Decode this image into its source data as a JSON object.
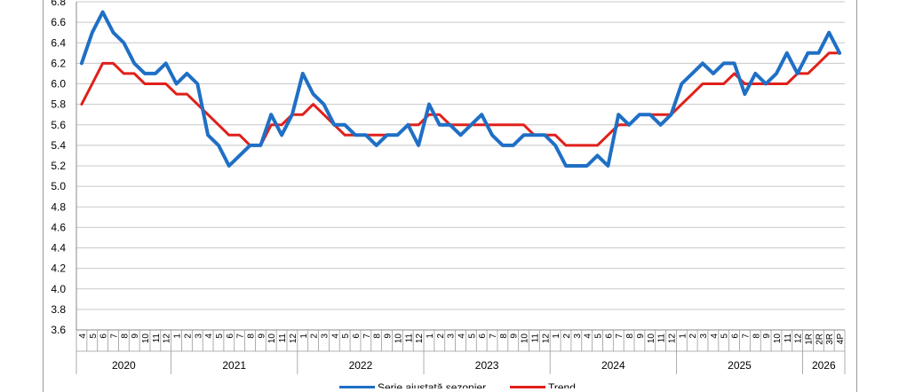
{
  "chart_data": {
    "type": "line",
    "ylim": [
      3.6,
      6.8
    ],
    "y_ticks": [
      "3.6",
      "3.8",
      "4.0",
      "4.2",
      "4.4",
      "4.6",
      "4.8",
      "5.0",
      "5.2",
      "5.4",
      "5.6",
      "5.8",
      "6.0",
      "6.2",
      "6.4",
      "6.6",
      "6.8"
    ],
    "grid": true,
    "legend": "bottom",
    "month_labels": [
      "4",
      "5",
      "6",
      "7",
      "8",
      "9",
      "10",
      "11",
      "12",
      "1",
      "2",
      "3",
      "4",
      "5",
      "6",
      "7",
      "8",
      "9",
      "10",
      "11",
      "12",
      "1",
      "2",
      "3",
      "4",
      "5",
      "6",
      "7",
      "8",
      "9",
      "10",
      "11",
      "12",
      "1",
      "2",
      "3",
      "4",
      "5",
      "6",
      "7",
      "8",
      "9",
      "10",
      "11",
      "12",
      "1",
      "2",
      "3",
      "4",
      "5",
      "6",
      "7",
      "8",
      "9",
      "10",
      "11",
      "12",
      "1",
      "2",
      "3",
      "4",
      "5",
      "6",
      "7",
      "8",
      "9",
      "10",
      "11",
      "12",
      "1R",
      "2R",
      "3R",
      "4P"
    ],
    "year_groups": [
      {
        "label": "2020",
        "count": 9
      },
      {
        "label": "2021",
        "count": 12
      },
      {
        "label": "2022",
        "count": 12
      },
      {
        "label": "2023",
        "count": 12
      },
      {
        "label": "2024",
        "count": 12
      },
      {
        "label": "2025",
        "count": 12
      },
      {
        "label": "2026",
        "count": 4
      }
    ],
    "series": [
      {
        "name": "Serie ajustată sezonier",
        "color": "#1f6fc5",
        "values": [
          6.2,
          6.5,
          6.7,
          6.5,
          6.4,
          6.2,
          6.1,
          6.1,
          6.2,
          6.0,
          6.1,
          6.0,
          5.5,
          5.4,
          5.2,
          5.3,
          5.4,
          5.4,
          5.7,
          5.5,
          5.7,
          6.1,
          5.9,
          5.8,
          5.6,
          5.6,
          5.5,
          5.5,
          5.4,
          5.5,
          5.5,
          5.6,
          5.4,
          5.8,
          5.6,
          5.6,
          5.5,
          5.6,
          5.7,
          5.5,
          5.4,
          5.4,
          5.5,
          5.5,
          5.5,
          5.4,
          5.2,
          5.2,
          5.2,
          5.3,
          5.2,
          5.7,
          5.6,
          5.7,
          5.7,
          5.6,
          5.7,
          6.0,
          6.1,
          6.2,
          6.1,
          6.2,
          6.2,
          5.9,
          6.1,
          6.0,
          6.1,
          6.3,
          6.1,
          6.3,
          6.3,
          6.5,
          6.3
        ]
      },
      {
        "name": "Trend",
        "color": "#e0201b",
        "values": [
          5.8,
          6.0,
          6.2,
          6.2,
          6.1,
          6.1,
          6.0,
          6.0,
          6.0,
          5.9,
          5.9,
          5.8,
          5.7,
          5.6,
          5.5,
          5.5,
          5.4,
          5.4,
          5.6,
          5.6,
          5.7,
          5.7,
          5.8,
          5.7,
          5.6,
          5.5,
          5.5,
          5.5,
          5.5,
          5.5,
          5.5,
          5.6,
          5.6,
          5.7,
          5.7,
          5.6,
          5.6,
          5.6,
          5.6,
          5.6,
          5.6,
          5.6,
          5.6,
          5.5,
          5.5,
          5.5,
          5.4,
          5.4,
          5.4,
          5.4,
          5.5,
          5.6,
          5.6,
          5.7,
          5.7,
          5.7,
          5.7,
          5.8,
          5.9,
          6.0,
          6.0,
          6.0,
          6.1,
          6.0,
          6.0,
          6.0,
          6.0,
          6.0,
          6.1,
          6.1,
          6.2,
          6.3,
          6.3
        ]
      }
    ]
  }
}
